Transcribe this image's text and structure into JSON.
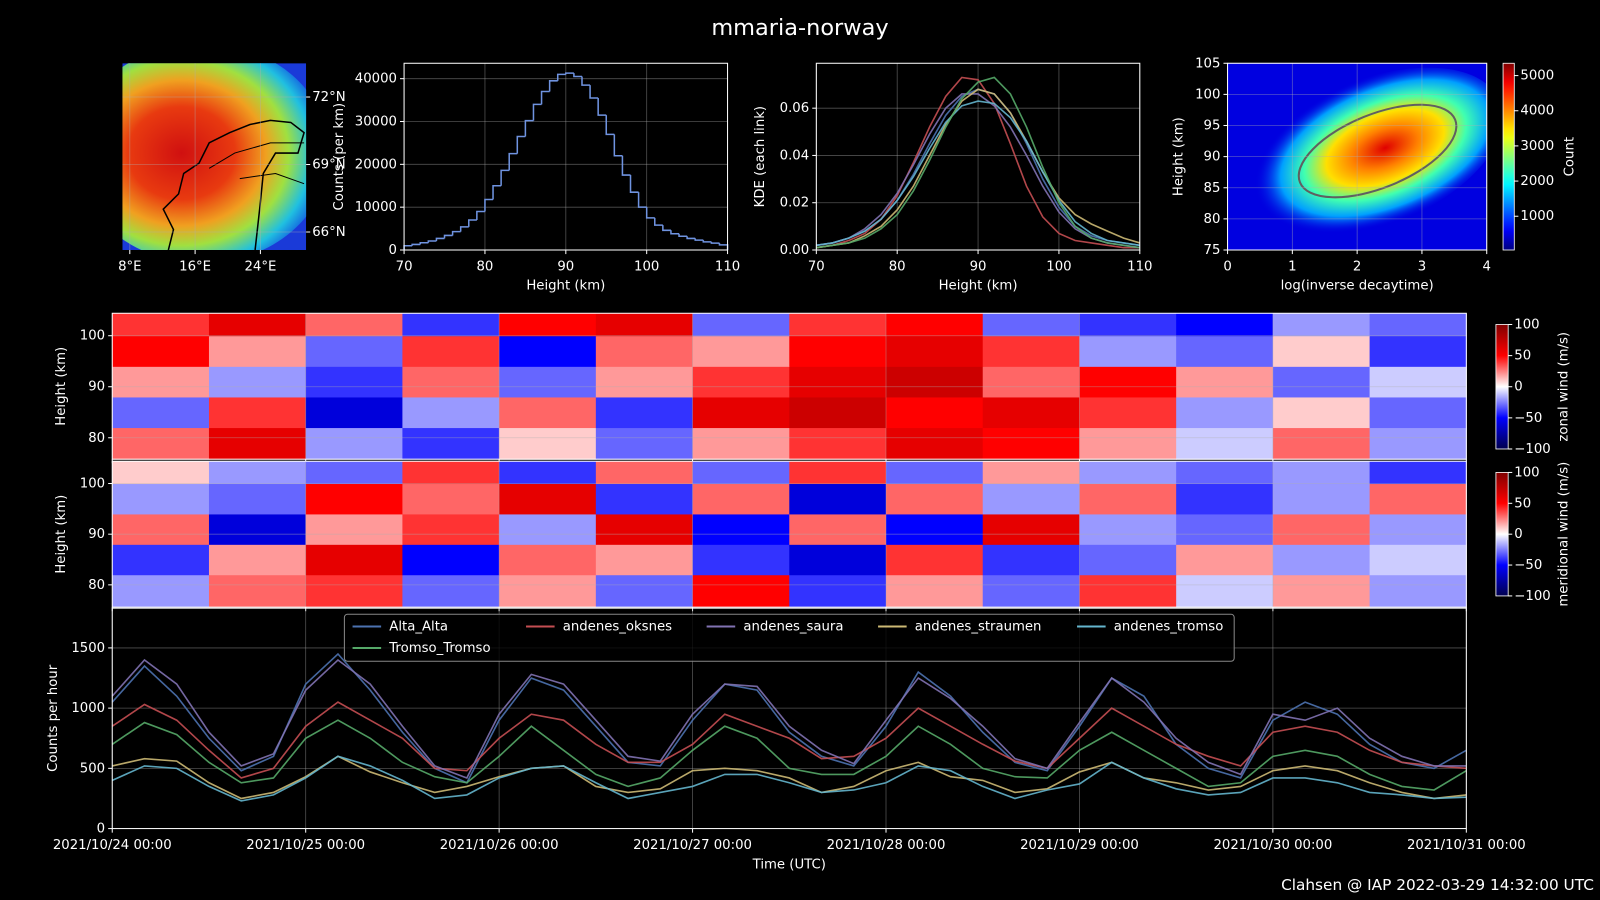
{
  "title": "mmaria-norway",
  "footer": "Clahsen @ IAP 2022-03-29 14:32:00 UTC",
  "chart_data": [
    {
      "type": "map",
      "xlim": [
        7.1,
        29.6
      ],
      "ylim": [
        65.2,
        73.5
      ],
      "grid": true,
      "xticks": [
        {
          "value": 8,
          "label": "8°E"
        },
        {
          "value": 16,
          "label": "16°E"
        },
        {
          "value": 24,
          "label": "24°E"
        }
      ],
      "yticks": [
        {
          "value": 66,
          "label": "66°N"
        },
        {
          "value": 69,
          "label": "69°N"
        },
        {
          "value": 72,
          "label": "72°N"
        }
      ]
    },
    {
      "type": "histogram",
      "color": "#6f93e0",
      "xlabel": "Height (km)",
      "ylabel": "Counts (per km)",
      "grid": true,
      "bins": [
        70,
        71,
        72,
        73,
        74,
        75,
        76,
        77,
        78,
        79,
        80,
        81,
        82,
        83,
        84,
        85,
        86,
        87,
        88,
        89,
        90,
        91,
        92,
        93,
        94,
        95,
        96,
        97,
        98,
        99,
        100,
        101,
        102,
        103,
        104,
        105,
        106,
        107,
        108,
        109,
        110
      ],
      "counts": [
        1000,
        1300,
        1700,
        2100,
        2700,
        3400,
        4300,
        5400,
        7000,
        9000,
        11800,
        15000,
        18600,
        22500,
        26500,
        30200,
        34000,
        37000,
        39500,
        41000,
        41300,
        40500,
        38500,
        35500,
        31500,
        27000,
        22000,
        17500,
        13500,
        10000,
        7500,
        5800,
        4600,
        3800,
        3200,
        2700,
        2300,
        1900,
        1600,
        1200
      ],
      "xlim": [
        70,
        110
      ],
      "ylim": [
        0,
        43600
      ],
      "xticks": [
        70,
        80,
        90,
        100,
        110
      ],
      "yticks": [
        0,
        10000,
        20000,
        30000,
        40000
      ]
    },
    {
      "type": "line",
      "xlabel": "Height (km)",
      "ylabel": "KDE (each link)",
      "grid": true,
      "x": [
        70,
        72,
        74,
        76,
        78,
        80,
        82,
        84,
        86,
        88,
        90,
        92,
        94,
        96,
        98,
        100,
        102,
        104,
        106,
        108,
        110
      ],
      "series": [
        {
          "color": "#4c72b0",
          "values": [
            0.002,
            0.003,
            0.005,
            0.008,
            0.013,
            0.021,
            0.032,
            0.045,
            0.057,
            0.065,
            0.068,
            0.066,
            0.058,
            0.045,
            0.03,
            0.018,
            0.01,
            0.006,
            0.004,
            0.003,
            0.002
          ]
        },
        {
          "color": "#c44e52",
          "values": [
            0.001,
            0.002,
            0.004,
            0.007,
            0.013,
            0.023,
            0.037,
            0.052,
            0.065,
            0.073,
            0.072,
            0.062,
            0.045,
            0.027,
            0.014,
            0.007,
            0.004,
            0.003,
            0.002,
            0.001,
            0.001
          ]
        },
        {
          "color": "#8172b2",
          "values": [
            0.002,
            0.003,
            0.005,
            0.009,
            0.015,
            0.024,
            0.036,
            0.049,
            0.06,
            0.066,
            0.066,
            0.061,
            0.052,
            0.04,
            0.027,
            0.016,
            0.009,
            0.005,
            0.003,
            0.002,
            0.001
          ]
        },
        {
          "color": "#ccb974",
          "values": [
            0.001,
            0.002,
            0.003,
            0.006,
            0.01,
            0.017,
            0.027,
            0.04,
            0.053,
            0.063,
            0.068,
            0.066,
            0.058,
            0.046,
            0.033,
            0.022,
            0.015,
            0.011,
            0.008,
            0.005,
            0.003
          ]
        },
        {
          "color": "#64b5cd",
          "values": [
            0.002,
            0.003,
            0.005,
            0.008,
            0.013,
            0.021,
            0.031,
            0.043,
            0.054,
            0.061,
            0.063,
            0.062,
            0.056,
            0.046,
            0.033,
            0.021,
            0.012,
            0.007,
            0.004,
            0.003,
            0.002
          ]
        },
        {
          "color": "#55a868",
          "values": [
            0.001,
            0.002,
            0.003,
            0.005,
            0.009,
            0.015,
            0.025,
            0.038,
            0.052,
            0.064,
            0.071,
            0.073,
            0.066,
            0.052,
            0.035,
            0.02,
            0.01,
            0.005,
            0.003,
            0.002,
            0.001
          ]
        }
      ],
      "xlim": [
        70,
        110
      ],
      "ylim": [
        0,
        0.079
      ],
      "xticks": [
        70,
        80,
        90,
        100,
        110
      ],
      "yticks": [
        {
          "value": 0,
          "label": "0.00"
        },
        0.02,
        0.04,
        0.06
      ]
    },
    {
      "type": "density",
      "xlabel": "log(inverse decaytime)",
      "ylabel": "Height (km)",
      "colorbar_label": "Count",
      "cmap": "jet",
      "grid": true,
      "xlim": [
        0,
        4
      ],
      "ylim": [
        75,
        105
      ],
      "xticks": [
        0,
        1,
        2,
        3,
        4
      ],
      "yticks": [
        75,
        80,
        85,
        90,
        95,
        100,
        105
      ],
      "clim": [
        40,
        5350
      ],
      "cticks": [
        1000,
        2000,
        3000,
        4000,
        5000
      ]
    },
    {
      "type": "heatmap",
      "ylabel": "Height (km)",
      "colorbar_label": "zonal wind (m/s)",
      "cmap": "seismic",
      "grid": true,
      "xlim": [
        0,
        168
      ],
      "ylim": [
        75.8,
        104.4
      ],
      "xticks": [
        0,
        24,
        48,
        72,
        96,
        120,
        144,
        168
      ],
      "yticks": [
        80,
        90,
        100
      ],
      "x_edges": [
        0,
        12,
        24,
        36,
        48,
        60,
        72,
        84,
        96,
        108,
        120,
        132,
        144,
        156,
        168
      ],
      "y_edges": [
        75.8,
        82,
        88,
        94,
        100,
        104.4
      ],
      "z": [
        [
          30,
          60,
          -20,
          -40,
          10,
          -30,
          20,
          40,
          60,
          50,
          20,
          -10,
          30,
          -20
        ],
        [
          -30,
          40,
          -60,
          -20,
          30,
          -40,
          60,
          70,
          50,
          60,
          40,
          -20,
          10,
          -30
        ],
        [
          20,
          -20,
          -40,
          30,
          -30,
          20,
          40,
          60,
          70,
          30,
          50,
          20,
          -30,
          -10
        ],
        [
          50,
          20,
          -30,
          40,
          -50,
          30,
          20,
          50,
          60,
          40,
          -20,
          -30,
          10,
          -40
        ],
        [
          40,
          60,
          30,
          -40,
          50,
          60,
          -30,
          40,
          50,
          -30,
          -40,
          -50,
          -20,
          -30
        ]
      ],
      "clim": [
        -100,
        100
      ],
      "cticks": [
        {
          "value": -100,
          "label": "−100"
        },
        {
          "value": -50,
          "label": "−50"
        },
        0,
        50,
        100
      ]
    },
    {
      "type": "heatmap",
      "ylabel": "Height (km)",
      "colorbar_label": "meridional wind (m/s)",
      "cmap": "seismic",
      "grid": true,
      "xlim": [
        0,
        168
      ],
      "ylim": [
        75.6,
        104.4
      ],
      "xticks": [
        0,
        24,
        48,
        72,
        96,
        120,
        144,
        168
      ],
      "yticks": [
        80,
        90,
        100
      ],
      "x_edges": [
        0,
        12,
        24,
        36,
        48,
        60,
        72,
        84,
        96,
        108,
        120,
        132,
        144,
        156,
        168
      ],
      "y_edges": [
        75.6,
        82,
        88,
        94,
        100,
        104.4
      ],
      "z": [
        [
          -20,
          30,
          40,
          -30,
          20,
          -30,
          50,
          -40,
          20,
          -30,
          40,
          -10,
          20,
          -20
        ],
        [
          -40,
          20,
          60,
          -50,
          30,
          20,
          -40,
          -60,
          40,
          -40,
          -30,
          20,
          -20,
          -10
        ],
        [
          30,
          -60,
          20,
          40,
          -20,
          60,
          -50,
          30,
          -50,
          60,
          -20,
          -30,
          30,
          -20
        ],
        [
          -20,
          -30,
          50,
          30,
          60,
          -40,
          30,
          -60,
          30,
          -20,
          30,
          -40,
          -20,
          30
        ],
        [
          10,
          -20,
          -30,
          40,
          -40,
          30,
          -30,
          40,
          -30,
          20,
          -20,
          -30,
          -20,
          -40
        ]
      ],
      "clim": [
        -100,
        100
      ],
      "cticks": [
        {
          "value": -100,
          "label": "−100"
        },
        {
          "value": -50,
          "label": "−50"
        },
        0,
        50,
        100
      ]
    },
    {
      "type": "line",
      "xlabel": "Time (UTC)",
      "ylabel": "Counts per hour",
      "grid": true,
      "legend": "upper center",
      "x": [
        0,
        4,
        8,
        12,
        16,
        20,
        24,
        28,
        32,
        36,
        40,
        44,
        48,
        52,
        56,
        60,
        64,
        68,
        72,
        76,
        80,
        84,
        88,
        92,
        96,
        100,
        104,
        108,
        112,
        116,
        120,
        124,
        128,
        132,
        136,
        140,
        144,
        148,
        152,
        156,
        160,
        164,
        168
      ],
      "series": [
        {
          "name": "Alta_Alta",
          "color": "#4c72b0",
          "values": [
            1050,
            1350,
            1100,
            750,
            480,
            600,
            1200,
            1450,
            1150,
            800,
            500,
            380,
            900,
            1250,
            1150,
            850,
            550,
            520,
            900,
            1200,
            1150,
            800,
            600,
            520,
            850,
            1300,
            1100,
            800,
            550,
            480,
            850,
            1250,
            1100,
            700,
            500,
            420,
            900,
            1050,
            950,
            700,
            550,
            500,
            650
          ]
        },
        {
          "name": "andenes_oksnes",
          "color": "#c44e52",
          "values": [
            850,
            1030,
            900,
            650,
            420,
            500,
            850,
            1050,
            900,
            750,
            500,
            480,
            750,
            950,
            900,
            700,
            550,
            550,
            700,
            950,
            850,
            750,
            580,
            600,
            750,
            1000,
            850,
            700,
            560,
            500,
            750,
            1000,
            850,
            700,
            600,
            520,
            800,
            850,
            800,
            650,
            550,
            520,
            500
          ]
        },
        {
          "name": "andenes_saura",
          "color": "#8172b2",
          "values": [
            1100,
            1400,
            1200,
            800,
            520,
            620,
            1150,
            1400,
            1200,
            850,
            520,
            420,
            950,
            1280,
            1200,
            900,
            600,
            560,
            950,
            1200,
            1180,
            850,
            650,
            540,
            900,
            1250,
            1080,
            850,
            580,
            500,
            880,
            1250,
            1050,
            750,
            550,
            450,
            950,
            900,
            1000,
            750,
            600,
            520,
            520
          ]
        },
        {
          "name": "andenes_straumen",
          "color": "#ccb974",
          "values": [
            520,
            580,
            560,
            380,
            250,
            300,
            430,
            600,
            470,
            380,
            300,
            350,
            430,
            500,
            520,
            350,
            300,
            330,
            480,
            500,
            480,
            420,
            300,
            350,
            480,
            550,
            430,
            400,
            300,
            330,
            470,
            550,
            420,
            380,
            320,
            350,
            480,
            520,
            480,
            380,
            300,
            250,
            280
          ]
        },
        {
          "name": "andenes_tromso",
          "color": "#64b5cd",
          "values": [
            400,
            520,
            500,
            350,
            230,
            280,
            420,
            600,
            520,
            400,
            250,
            280,
            420,
            500,
            520,
            380,
            250,
            300,
            350,
            450,
            450,
            380,
            300,
            320,
            380,
            520,
            480,
            350,
            250,
            320,
            370,
            550,
            420,
            330,
            280,
            300,
            420,
            420,
            380,
            300,
            280,
            250,
            260
          ]
        },
        {
          "name": "Tromso_Tromso",
          "color": "#55a868",
          "values": [
            700,
            880,
            780,
            550,
            380,
            420,
            750,
            900,
            750,
            550,
            430,
            380,
            600,
            850,
            650,
            450,
            350,
            420,
            650,
            850,
            750,
            500,
            450,
            450,
            600,
            850,
            700,
            500,
            430,
            420,
            650,
            800,
            650,
            500,
            350,
            380,
            600,
            650,
            600,
            450,
            350,
            320,
            480
          ]
        }
      ],
      "xlim": [
        0,
        168
      ],
      "ylim": [
        0,
        1830
      ],
      "yticks": [
        0,
        500,
        1000,
        1500
      ],
      "xticks": [
        {
          "value": 0,
          "label": "2021/10/24 00:00"
        },
        {
          "value": 24,
          "label": "2021/10/25 00:00"
        },
        {
          "value": 48,
          "label": "2021/10/26 00:00"
        },
        {
          "value": 72,
          "label": "2021/10/27 00:00"
        },
        {
          "value": 96,
          "label": "2021/10/28 00:00"
        },
        {
          "value": 120,
          "label": "2021/10/29 00:00"
        },
        {
          "value": 144,
          "label": "2021/10/30 00:00"
        },
        {
          "value": 168,
          "label": "2021/10/31 00:00"
        }
      ]
    }
  ]
}
